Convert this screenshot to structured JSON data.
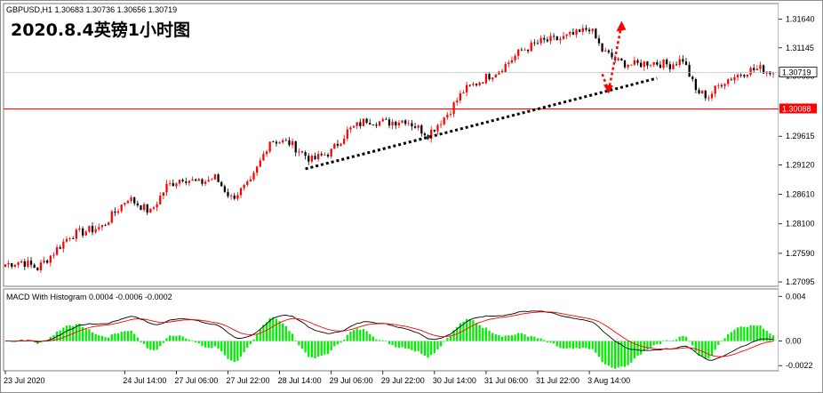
{
  "header": {
    "symbol_line": "GBPUSD,H1  1.30683 1.30736 1.30656 1.30719",
    "title": "2020.8.4英镑1小时图"
  },
  "macd": {
    "label": "MACD With Histogram 0.0004 -0.0006 -0.0002"
  },
  "colors": {
    "bull": "#ff0000",
    "bear": "#000000",
    "hline": "#ff0000",
    "trendline": "#000000",
    "arrow": "#ff0000",
    "histogram": "#00ee00",
    "macd_line": "#000000",
    "signal_line": "#ff0000",
    "current_price_tag": "#ffffff",
    "level_tag": "#ff0000"
  },
  "chart_data": [
    {
      "type": "candlestick",
      "symbol": "GBPUSD",
      "timeframe": "H1",
      "y_ticks": [
        "1.31640",
        "1.31145",
        "1.30655",
        "1.29615",
        "1.29120",
        "1.28610",
        "1.28100",
        "1.27590",
        "1.27095"
      ],
      "ylim": [
        1.2705,
        1.3188
      ],
      "horizontal_level": {
        "value": 1.30088,
        "label": "1.30088"
      },
      "current_price": {
        "value": 1.30719,
        "label": "1.30719"
      },
      "trendline": {
        "from": {
          "x": "28 Jul 22:00",
          "y": 1.2905
        },
        "to": {
          "x": "4 Aug 11:00",
          "y": 1.3062
        }
      },
      "arrow_projection": {
        "points": [
          {
            "x": "3 Aug 18:00",
            "y": 1.3069
          },
          {
            "x": "3 Aug 20:00",
            "y": 1.304
          },
          {
            "x": "4 Aug 00:00",
            "y": 1.3155
          }
        ]
      },
      "anchors": [
        {
          "i": 0,
          "v": 1.274
        },
        {
          "i": 5,
          "v": 1.2745
        },
        {
          "i": 10,
          "v": 1.2733
        },
        {
          "i": 14,
          "v": 1.2755
        },
        {
          "i": 20,
          "v": 1.279
        },
        {
          "i": 30,
          "v": 1.2805
        },
        {
          "i": 38,
          "v": 1.2855
        },
        {
          "i": 45,
          "v": 1.283
        },
        {
          "i": 50,
          "v": 1.2875
        },
        {
          "i": 55,
          "v": 1.289
        },
        {
          "i": 60,
          "v": 1.288
        },
        {
          "i": 65,
          "v": 1.289
        },
        {
          "i": 70,
          "v": 1.2855
        },
        {
          "i": 76,
          "v": 1.288
        },
        {
          "i": 82,
          "v": 1.2955
        },
        {
          "i": 88,
          "v": 1.295
        },
        {
          "i": 95,
          "v": 1.292
        },
        {
          "i": 101,
          "v": 1.2935
        },
        {
          "i": 106,
          "v": 1.297
        },
        {
          "i": 112,
          "v": 1.299
        },
        {
          "i": 118,
          "v": 1.2985
        },
        {
          "i": 124,
          "v": 1.299
        },
        {
          "i": 131,
          "v": 1.2965
        },
        {
          "i": 137,
          "v": 1.3
        },
        {
          "i": 142,
          "v": 1.304
        },
        {
          "i": 148,
          "v": 1.306
        },
        {
          "i": 154,
          "v": 1.308
        },
        {
          "i": 160,
          "v": 1.311
        },
        {
          "i": 166,
          "v": 1.3125
        },
        {
          "i": 172,
          "v": 1.313
        },
        {
          "i": 178,
          "v": 1.314
        },
        {
          "i": 181,
          "v": 1.315
        },
        {
          "i": 185,
          "v": 1.311
        },
        {
          "i": 190,
          "v": 1.309
        },
        {
          "i": 195,
          "v": 1.3085
        },
        {
          "i": 200,
          "v": 1.309
        },
        {
          "i": 206,
          "v": 1.3085
        },
        {
          "i": 210,
          "v": 1.3095
        },
        {
          "i": 214,
          "v": 1.304
        },
        {
          "i": 218,
          "v": 1.303
        },
        {
          "i": 222,
          "v": 1.3055
        },
        {
          "i": 226,
          "v": 1.3065
        },
        {
          "i": 230,
          "v": 1.3075
        },
        {
          "i": 234,
          "v": 1.3078
        },
        {
          "i": 238,
          "v": 1.3072
        }
      ],
      "count": 239,
      "x_ticks": [
        "23 Jul 2020",
        "24 Jul 14:00",
        "27 Jul 06:00",
        "27 Jul 22:00",
        "28 Jul 14:00",
        "29 Jul 06:00",
        "29 Jul 22:00",
        "30 Jul 14:00",
        "31 Jul 06:00",
        "31 Jul 22:00",
        "3 Aug 14:00"
      ]
    },
    {
      "type": "macd",
      "title": "MACD With Histogram 0.0004 -0.0006 -0.0002",
      "y_ticks": [
        "0.004",
        "0.00",
        "-0.0022"
      ],
      "ylim": [
        -0.0025,
        0.0045
      ],
      "macd_last": 0.0004,
      "signal_last": -0.0006,
      "histogram_last": -0.0002
    }
  ]
}
